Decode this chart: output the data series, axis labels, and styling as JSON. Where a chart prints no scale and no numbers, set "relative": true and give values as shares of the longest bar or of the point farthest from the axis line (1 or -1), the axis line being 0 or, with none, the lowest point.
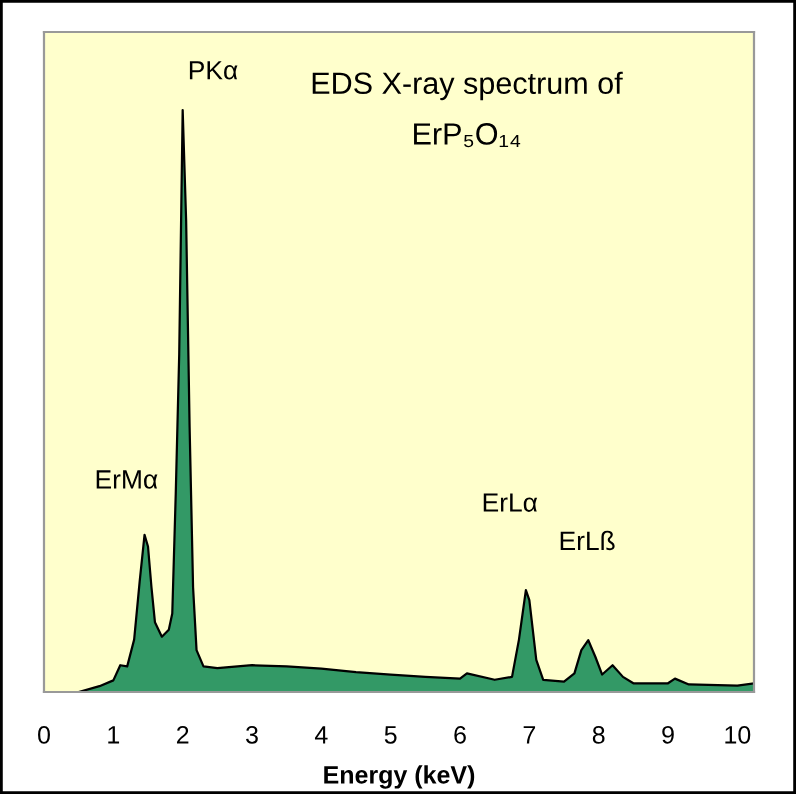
{
  "chart_data": {
    "type": "area",
    "relative": true,
    "title": "EDS X-ray spectrum of\nErP₅O₁₄",
    "xlabel": "Energy (keV)",
    "x": [
      0.5,
      0.8,
      1.0,
      1.1,
      1.2,
      1.3,
      1.38,
      1.45,
      1.5,
      1.55,
      1.6,
      1.7,
      1.8,
      1.85,
      1.9,
      1.95,
      2.0,
      2.05,
      2.1,
      2.15,
      2.2,
      2.3,
      2.5,
      3.0,
      3.5,
      4.0,
      4.5,
      5.0,
      5.5,
      6.0,
      6.1,
      6.5,
      6.75,
      6.85,
      6.95,
      7.0,
      7.1,
      7.2,
      7.5,
      7.65,
      7.75,
      7.85,
      7.95,
      8.05,
      8.2,
      8.35,
      8.5,
      9.0,
      9.1,
      9.3,
      10.0,
      10.24
    ],
    "series": [
      {
        "color": "#339966",
        "values": [
          0,
          0.01,
          0.02,
          0.046,
          0.044,
          0.09,
          0.19,
          0.27,
          0.25,
          0.18,
          0.12,
          0.095,
          0.107,
          0.135,
          0.34,
          0.58,
          1,
          0.81,
          0.456,
          0.18,
          0.072,
          0.044,
          0.041,
          0.046,
          0.044,
          0.04,
          0.034,
          0.03,
          0.026,
          0.023,
          0.032,
          0.021,
          0.026,
          0.09,
          0.175,
          0.158,
          0.055,
          0.021,
          0.018,
          0.032,
          0.072,
          0.089,
          0.061,
          0.03,
          0.046,
          0.026,
          0.015,
          0.015,
          0.023,
          0.013,
          0.011,
          0.015
        ]
      }
    ],
    "annotations": [
      "PKα",
      "ErMα",
      "ErLα",
      "ErLß"
    ],
    "xlim": [
      0,
      10.24
    ],
    "xticks": [
      0,
      1,
      2,
      3,
      4,
      5,
      6,
      7,
      8,
      9,
      10
    ],
    "grid": false
  }
}
